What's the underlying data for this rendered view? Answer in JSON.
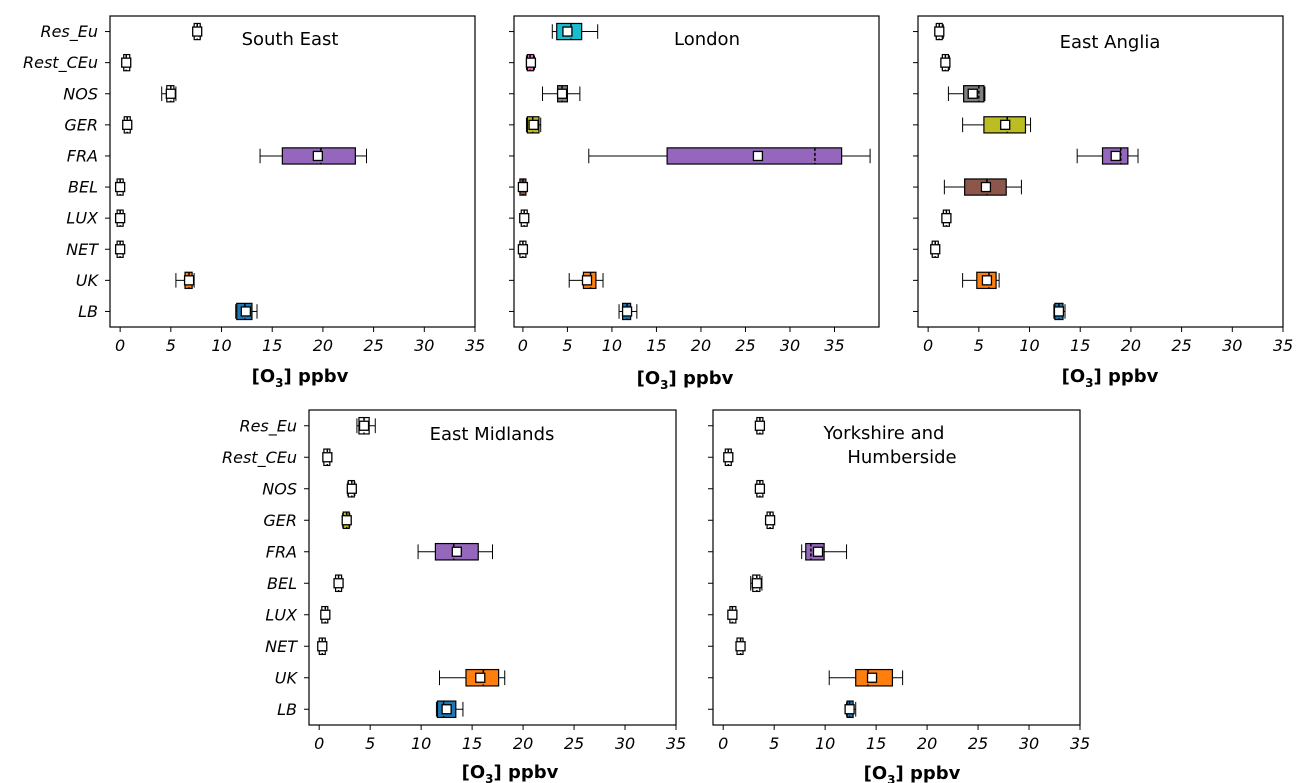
{
  "figure": {
    "xlabel_main": "[O",
    "xlabel_sub": "3",
    "xlabel_tail": "] ppbv"
  },
  "chart_data": [
    {
      "type": "box",
      "title": "South East",
      "xlim": [
        -1,
        35
      ],
      "xticks": [
        0,
        5,
        10,
        15,
        20,
        25,
        30,
        35
      ],
      "categories": [
        "Res_Eu",
        "Rest_CEu",
        "NOS",
        "GER",
        "FRA",
        "BEL",
        "LUX",
        "NET",
        "UK",
        "LB"
      ],
      "colors": [
        "#ffffff",
        "#ffffff",
        "#ffffff",
        "#ffffff",
        "#9467bd",
        "#ffffff",
        "#ffffff",
        "#ffffff",
        "#ff7f0e",
        "#1f77b4"
      ],
      "boxes": [
        {
          "whislo": 7.3,
          "q1": 7.4,
          "med": 7.6,
          "q3": 7.8,
          "whishi": 7.9,
          "mean": 7.6
        },
        {
          "whislo": 0.4,
          "q1": 0.5,
          "med": 0.6,
          "q3": 0.8,
          "whishi": 0.9,
          "mean": 0.6
        },
        {
          "whislo": 4.1,
          "q1": 4.6,
          "med": 5.0,
          "q3": 5.3,
          "whishi": 5.5,
          "mean": 5.0
        },
        {
          "whislo": 0.5,
          "q1": 0.6,
          "med": 0.7,
          "q3": 0.8,
          "whishi": 0.9,
          "mean": 0.7
        },
        {
          "whislo": 13.8,
          "q1": 16.0,
          "med": 19.8,
          "q3": 23.2,
          "whishi": 24.3,
          "mean": 19.5
        },
        {
          "whislo": -0.1,
          "q1": -0.05,
          "med": 0.0,
          "q3": 0.05,
          "whishi": 0.1,
          "mean": 0.0
        },
        {
          "whislo": -0.1,
          "q1": -0.05,
          "med": 0.0,
          "q3": 0.05,
          "whishi": 0.1,
          "mean": 0.0
        },
        {
          "whislo": -0.1,
          "q1": -0.05,
          "med": 0.0,
          "q3": 0.05,
          "whishi": 0.1,
          "mean": 0.0
        },
        {
          "whislo": 5.5,
          "q1": 6.4,
          "med": 6.8,
          "q3": 7.1,
          "whishi": 7.3,
          "mean": 6.8
        },
        {
          "whislo": 11.4,
          "q1": 11.5,
          "med": 12.3,
          "q3": 13.0,
          "whishi": 13.5,
          "mean": 12.4
        }
      ]
    },
    {
      "type": "box",
      "title": "London",
      "xlim": [
        -1,
        40
      ],
      "xticks": [
        0,
        5,
        10,
        15,
        20,
        25,
        30,
        35
      ],
      "categories": [
        "Res_Eu",
        "Rest_CEu",
        "NOS",
        "GER",
        "FRA",
        "BEL",
        "LUX",
        "NET",
        "UK",
        "LB"
      ],
      "colors": [
        "#17becf",
        "#e377c2",
        "#7f7f7f",
        "#bcbd22",
        "#9467bd",
        "#8c564b",
        "#ffffff",
        "#ffffff",
        "#ff7f0e",
        "#1f77b4"
      ],
      "boxes": [
        {
          "whislo": 3.3,
          "q1": 3.8,
          "med": 5.4,
          "q3": 6.6,
          "whishi": 8.4,
          "mean": 5.0
        },
        {
          "whislo": 0.4,
          "q1": 0.5,
          "med": 0.8,
          "q3": 1.2,
          "whishi": 1.3,
          "mean": 0.9
        },
        {
          "whislo": 2.2,
          "q1": 3.9,
          "med": 4.4,
          "q3": 5.0,
          "whishi": 6.4,
          "mean": 4.4
        },
        {
          "whislo": 0.4,
          "q1": 0.5,
          "med": 1.1,
          "q3": 1.8,
          "whishi": 2.0,
          "mean": 1.2
        },
        {
          "whislo": 7.4,
          "q1": 16.2,
          "med": 32.8,
          "q3": 35.8,
          "whishi": 39.0,
          "mean": 26.4
        },
        {
          "whislo": -0.1,
          "q1": -0.05,
          "med": 0.0,
          "q3": 0.05,
          "whishi": 0.1,
          "mean": 0.0
        },
        {
          "whislo": 0.05,
          "q1": 0.1,
          "med": 0.15,
          "q3": 0.2,
          "whishi": 0.25,
          "mean": 0.15
        },
        {
          "whislo": -0.1,
          "q1": -0.05,
          "med": 0.0,
          "q3": 0.05,
          "whishi": 0.1,
          "mean": 0.0
        },
        {
          "whislo": 5.2,
          "q1": 6.8,
          "med": 7.6,
          "q3": 8.2,
          "whishi": 9.0,
          "mean": 7.2
        },
        {
          "whislo": 10.8,
          "q1": 11.2,
          "med": 11.7,
          "q3": 12.1,
          "whishi": 12.8,
          "mean": 11.7
        }
      ]
    },
    {
      "type": "box",
      "title": "East Anglia",
      "xlim": [
        -1,
        35
      ],
      "xticks": [
        0,
        5,
        10,
        15,
        20,
        25,
        30,
        35
      ],
      "categories": [
        "Res_Eu",
        "Rest_CEu",
        "NOS",
        "GER",
        "FRA",
        "BEL",
        "LUX",
        "NET",
        "UK",
        "LB"
      ],
      "colors": [
        "#ffffff",
        "#ffffff",
        "#7f7f7f",
        "#bcbd22",
        "#9467bd",
        "#8c564b",
        "#ffffff",
        "#ffffff",
        "#ff7f0e",
        "#1f77b4"
      ],
      "boxes": [
        {
          "whislo": 0.8,
          "q1": 0.9,
          "med": 1.1,
          "q3": 1.3,
          "whishi": 1.5,
          "mean": 1.1
        },
        {
          "whislo": 1.4,
          "q1": 1.5,
          "med": 1.7,
          "q3": 1.9,
          "whishi": 2.1,
          "mean": 1.7
        },
        {
          "whislo": 2.0,
          "q1": 3.5,
          "med": 5.0,
          "q3": 5.5,
          "whishi": 5.6,
          "mean": 4.4
        },
        {
          "whislo": 3.4,
          "q1": 5.5,
          "med": 7.8,
          "q3": 9.6,
          "whishi": 10.1,
          "mean": 7.6
        },
        {
          "whislo": 14.7,
          "q1": 17.2,
          "med": 19.0,
          "q3": 19.7,
          "whishi": 20.7,
          "mean": 18.5
        },
        {
          "whislo": 1.6,
          "q1": 3.6,
          "med": 5.8,
          "q3": 7.7,
          "whishi": 9.2,
          "mean": 5.7
        },
        {
          "whislo": 1.5,
          "q1": 1.6,
          "med": 1.8,
          "q3": 2.0,
          "whishi": 2.1,
          "mean": 1.8
        },
        {
          "whislo": 0.4,
          "q1": 0.5,
          "med": 0.7,
          "q3": 0.9,
          "whishi": 1.0,
          "mean": 0.7
        },
        {
          "whislo": 3.4,
          "q1": 4.8,
          "med": 6.0,
          "q3": 6.7,
          "whishi": 7.0,
          "mean": 5.8
        },
        {
          "whislo": 12.4,
          "q1": 12.5,
          "med": 12.9,
          "q3": 13.3,
          "whishi": 13.5,
          "mean": 12.9
        }
      ]
    },
    {
      "type": "box",
      "title": "East Midlands",
      "xlim": [
        -1,
        35
      ],
      "xticks": [
        0,
        5,
        10,
        15,
        20,
        25,
        30,
        35
      ],
      "categories": [
        "Res_Eu",
        "Rest_CEu",
        "NOS",
        "GER",
        "FRA",
        "BEL",
        "LUX",
        "NET",
        "UK",
        "LB"
      ],
      "colors": [
        "#ffffff",
        "#ffffff",
        "#ffffff",
        "#bcbd22",
        "#9467bd",
        "#ffffff",
        "#ffffff",
        "#ffffff",
        "#ff7f0e",
        "#1f77b4"
      ],
      "boxes": [
        {
          "whislo": 3.7,
          "q1": 3.9,
          "med": 4.4,
          "q3": 4.9,
          "whishi": 5.5,
          "mean": 4.4
        },
        {
          "whislo": 0.5,
          "q1": 0.6,
          "med": 0.8,
          "q3": 0.9,
          "whishi": 1.0,
          "mean": 0.8
        },
        {
          "whislo": 2.8,
          "q1": 2.9,
          "med": 3.2,
          "q3": 3.4,
          "whishi": 3.5,
          "mean": 3.2
        },
        {
          "whislo": 2.3,
          "q1": 2.4,
          "med": 2.7,
          "q3": 2.9,
          "whishi": 3.0,
          "mean": 2.7
        },
        {
          "whislo": 9.7,
          "q1": 11.4,
          "med": 13.2,
          "q3": 15.6,
          "whishi": 17.0,
          "mean": 13.5
        },
        {
          "whislo": 1.6,
          "q1": 1.7,
          "med": 1.9,
          "q3": 2.1,
          "whishi": 2.2,
          "mean": 1.9
        },
        {
          "whislo": 0.3,
          "q1": 0.4,
          "med": 0.6,
          "q3": 0.7,
          "whishi": 0.8,
          "mean": 0.6
        },
        {
          "whislo": 0.1,
          "q1": 0.2,
          "med": 0.3,
          "q3": 0.4,
          "whishi": 0.5,
          "mean": 0.3
        },
        {
          "whislo": 11.8,
          "q1": 14.4,
          "med": 16.1,
          "q3": 17.6,
          "whishi": 18.2,
          "mean": 15.8
        },
        {
          "whislo": 11.5,
          "q1": 11.6,
          "med": 12.2,
          "q3": 13.4,
          "whishi": 14.1,
          "mean": 12.5
        }
      ]
    },
    {
      "type": "box",
      "title": "Yorkshire and",
      "title_line2": "Humberside",
      "xlim": [
        -1,
        35
      ],
      "xticks": [
        0,
        5,
        10,
        15,
        20,
        25,
        30,
        35
      ],
      "categories": [
        "Res_Eu",
        "Rest_CEu",
        "NOS",
        "GER",
        "FRA",
        "BEL",
        "LUX",
        "NET",
        "UK",
        "LB"
      ],
      "colors": [
        "#ffffff",
        "#ffffff",
        "#ffffff",
        "#ffffff",
        "#9467bd",
        "#ffffff",
        "#ffffff",
        "#ffffff",
        "#ff7f0e",
        "#1f77b4"
      ],
      "boxes": [
        {
          "whislo": 3.3,
          "q1": 3.4,
          "med": 3.6,
          "q3": 3.8,
          "whishi": 3.9,
          "mean": 3.6
        },
        {
          "whislo": 0.3,
          "q1": 0.4,
          "med": 0.5,
          "q3": 0.6,
          "whishi": 0.7,
          "mean": 0.5
        },
        {
          "whislo": 3.3,
          "q1": 3.4,
          "med": 3.6,
          "q3": 3.8,
          "whishi": 3.9,
          "mean": 3.6
        },
        {
          "whislo": 4.3,
          "q1": 4.4,
          "med": 4.6,
          "q3": 4.8,
          "whishi": 4.9,
          "mean": 4.6
        },
        {
          "whislo": 7.7,
          "q1": 8.1,
          "med": 8.6,
          "q3": 9.9,
          "whishi": 12.1,
          "mean": 9.3
        },
        {
          "whislo": 2.7,
          "q1": 2.9,
          "med": 3.3,
          "q3": 3.6,
          "whishi": 3.8,
          "mean": 3.3
        },
        {
          "whislo": 0.7,
          "q1": 0.8,
          "med": 0.9,
          "q3": 1.1,
          "whishi": 1.2,
          "mean": 0.9
        },
        {
          "whislo": 1.4,
          "q1": 1.5,
          "med": 1.7,
          "q3": 1.8,
          "whishi": 1.9,
          "mean": 1.7
        },
        {
          "whislo": 10.4,
          "q1": 13.0,
          "med": 14.2,
          "q3": 16.6,
          "whishi": 17.6,
          "mean": 14.6
        },
        {
          "whislo": 12.1,
          "q1": 12.2,
          "med": 12.4,
          "q3": 12.7,
          "whishi": 13.0,
          "mean": 12.4
        }
      ]
    }
  ]
}
